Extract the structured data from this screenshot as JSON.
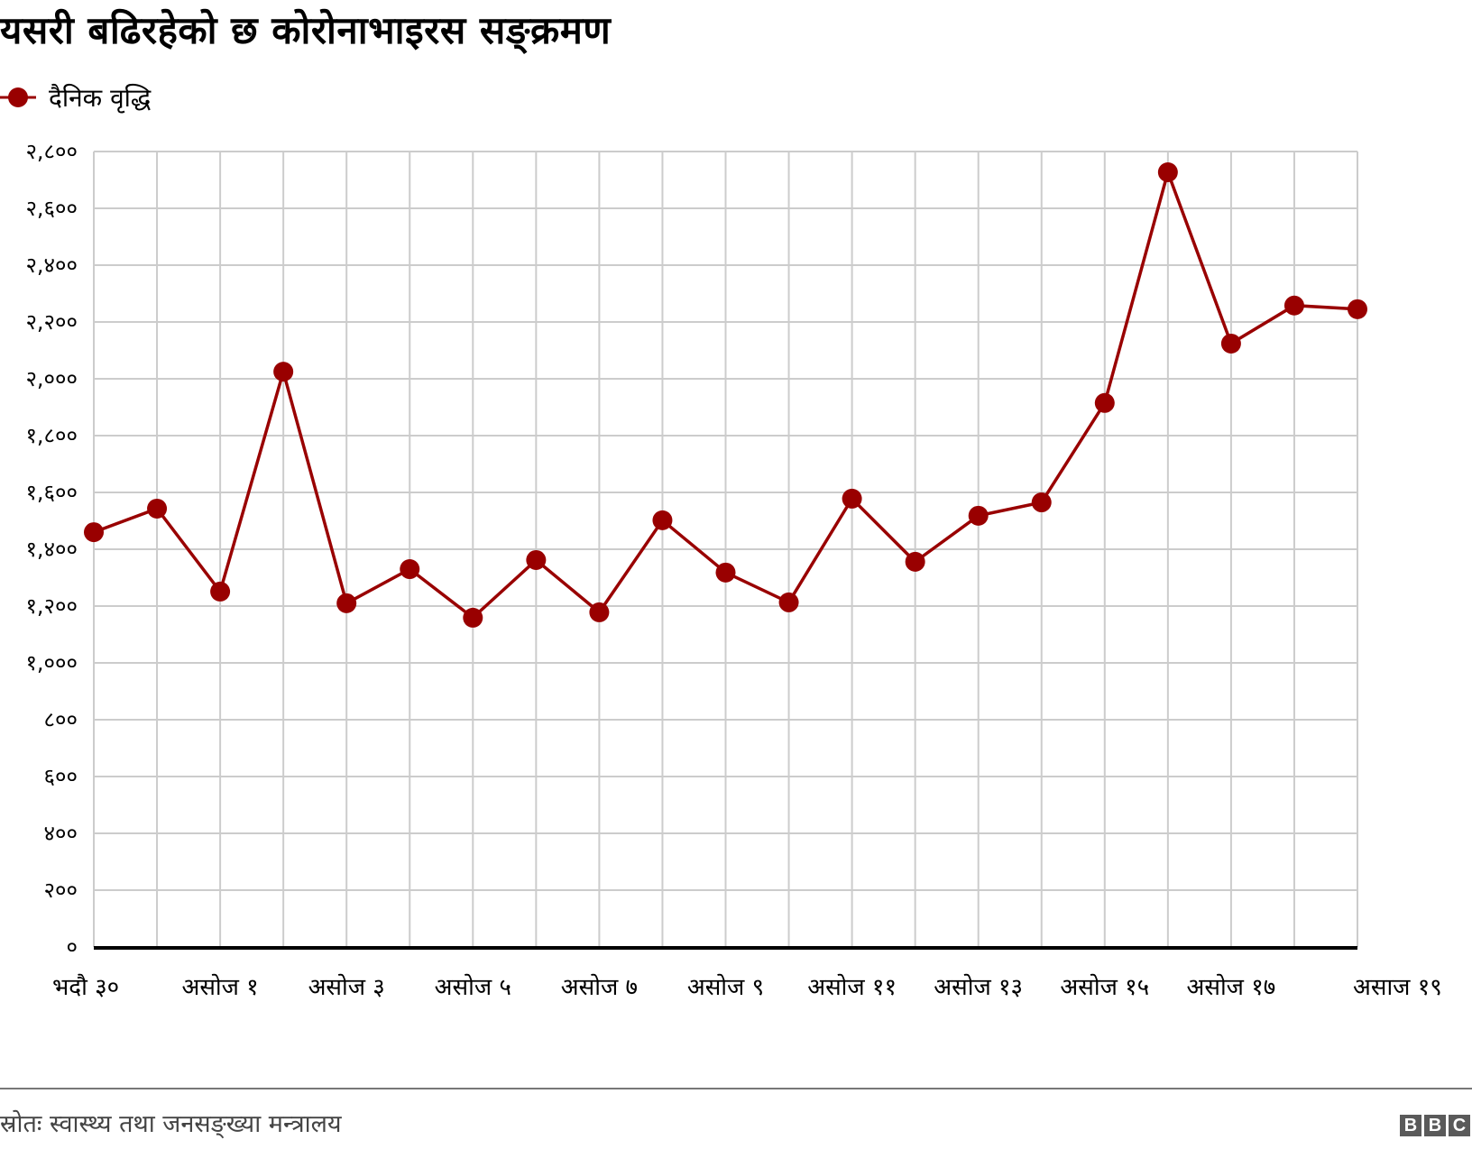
{
  "title": "यसरी बढिरहेको छ कोरोनाभाइरस सङ्क्रमण",
  "legend": {
    "label": "दैनिक वृद्धि",
    "color": "#990000"
  },
  "source": "स्रोतः स्वास्थ्य तथा जनसङ्ख्या मन्त्रालय",
  "logo": {
    "letters": [
      "B",
      "B",
      "C"
    ],
    "color": "#5a5a5a"
  },
  "colors": {
    "series": "#990000",
    "grid": "#cccccc",
    "axis": "#000000"
  },
  "chart_data": {
    "type": "line",
    "title": "यसरी बढिरहेको छ कोरोनाभाइरस सङ्क्रमण",
    "xlabel": "",
    "ylabel": "",
    "ylim": [
      0,
      2800
    ],
    "grid": true,
    "legend_position": "top-left",
    "y_ticks": [
      0,
      200,
      400,
      600,
      800,
      1000,
      1200,
      1400,
      1600,
      1800,
      2000,
      2200,
      2400,
      2600,
      2800
    ],
    "y_tick_labels": [
      "०",
      "२००",
      "४००",
      "६००",
      "८००",
      "१,०००",
      "१,२००",
      "१,४००",
      "१,६००",
      "१,८००",
      "२,०००",
      "२,२००",
      "२,४००",
      "२,६००",
      "२,८००"
    ],
    "x_tick_labels": [
      {
        "index": 0,
        "label": "भदौ ३०"
      },
      {
        "index": 2,
        "label": "असोज १"
      },
      {
        "index": 4,
        "label": "असोज ३"
      },
      {
        "index": 6,
        "label": "असोज ५"
      },
      {
        "index": 8,
        "label": "असोज ७"
      },
      {
        "index": 10,
        "label": "असोज ९"
      },
      {
        "index": 12,
        "label": "असोज ११"
      },
      {
        "index": 14,
        "label": "असोज १३"
      },
      {
        "index": 16,
        "label": "असोज १५"
      },
      {
        "index": 18,
        "label": "असोज १७"
      },
      {
        "index": 20,
        "label": "असाज १९"
      }
    ],
    "categories": [
      "भदौ ३०",
      "भदौ ३१",
      "असोज १",
      "असोज २",
      "असोज ३",
      "असोज ४",
      "असोज ५",
      "असोज ६",
      "असोज ७",
      "असोज ८",
      "असोज ९",
      "असोज १०",
      "असोज ११",
      "असोज १२",
      "असोज १३",
      "असोज १४",
      "असोज १५",
      "असोज १६",
      "असोज १७",
      "असोज १८",
      "असोज १९"
    ],
    "series": [
      {
        "name": "दैनिक वृद्धि",
        "color": "#990000",
        "values": [
          1460,
          1543,
          1251,
          2025,
          1210,
          1330,
          1159,
          1362,
          1178,
          1502,
          1318,
          1213,
          1578,
          1356,
          1518,
          1565,
          1915,
          2727,
          2124,
          2258,
          2245
        ]
      }
    ]
  }
}
